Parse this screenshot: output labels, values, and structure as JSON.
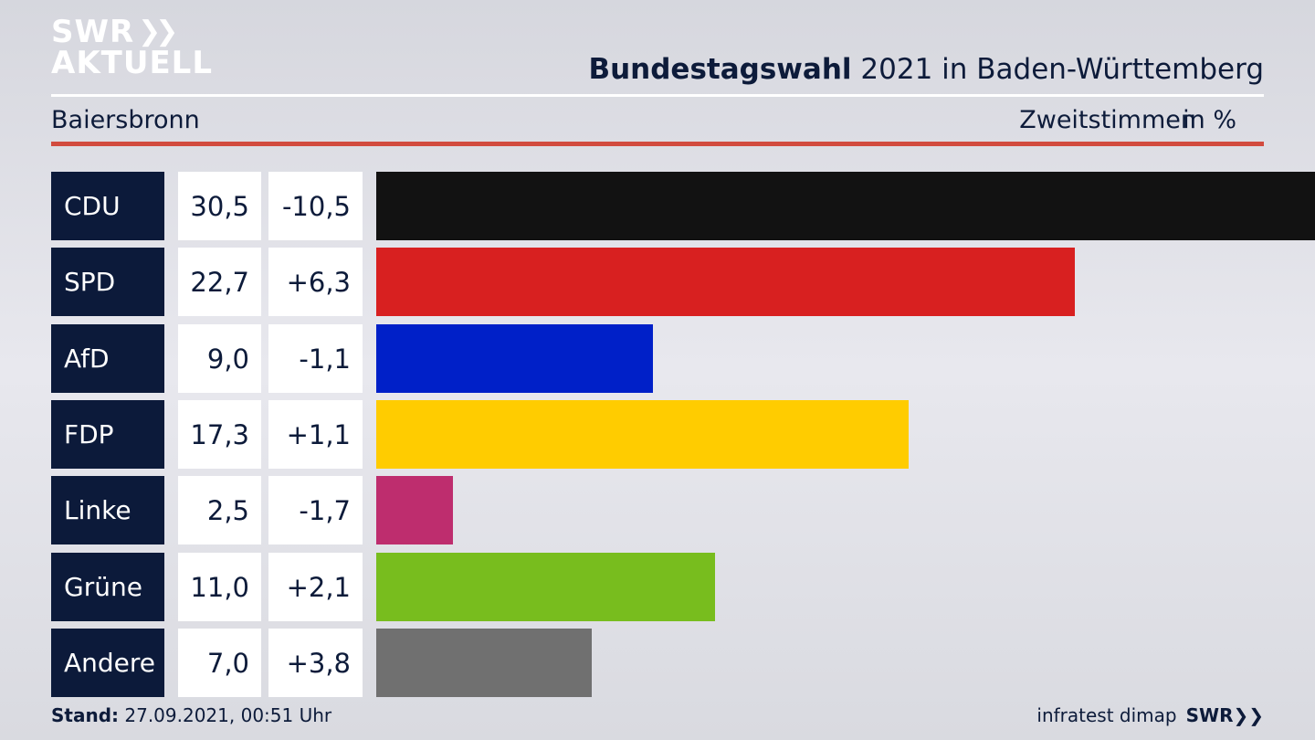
{
  "logo": {
    "line1": "SWR",
    "line2": "AKTUELL"
  },
  "header": {
    "title_bold": "Bundestagswahl",
    "title_rest": " 2021 in Baden-Württemberg",
    "location": "Baiersbronn",
    "metric": "Zweitstimmen",
    "unit": "in %"
  },
  "footer": {
    "stand_label": "Stand:",
    "stand_value": " 27.09.2021, 00:51 Uhr",
    "source": "infratest dimap",
    "brand": "SWR"
  },
  "chart_data": {
    "type": "bar",
    "categories": [
      "CDU",
      "SPD",
      "AfD",
      "FDP",
      "Linke",
      "Grüne",
      "Andere"
    ],
    "values": [
      30.5,
      22.7,
      9.0,
      17.3,
      2.5,
      11.0,
      7.0
    ],
    "value_labels": [
      "30,5",
      "22,7",
      "9,0",
      "17,3",
      "2,5",
      "11,0",
      "7,0"
    ],
    "change_labels": [
      "-10,5",
      "+6,3",
      "-1,1",
      "+1,1",
      "-1,7",
      "+2,1",
      "+3,8"
    ],
    "changes": [
      -10.5,
      6.3,
      -1.1,
      1.1,
      -1.7,
      2.1,
      3.8
    ],
    "colors": [
      "#121212",
      "#d82020",
      "#0020c8",
      "#ffcc00",
      "#be2d6e",
      "#78bd1e",
      "#707070"
    ],
    "title": "Bundestagswahl 2021 in Baden-Württemberg",
    "subtitle": "Baiersbronn",
    "xlabel": "",
    "ylabel": "",
    "xlim": [
      0,
      30.5
    ]
  }
}
